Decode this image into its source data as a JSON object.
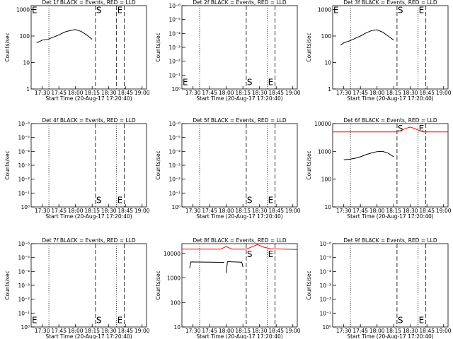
{
  "chart_data": [
    {
      "type": "line",
      "title": "Det 1f BLACK = Events, RED = LLD",
      "x_label": "Start Time (20-Aug-17 17:20:40)",
      "y_label": "Counts/sec",
      "xlim": [
        "17:20",
        "19:04"
      ],
      "xticks": [
        "17:30",
        "17:45",
        "18:00",
        "18:15",
        "18:30",
        "18:45",
        "19:00"
      ],
      "log_y": true,
      "ylim": [
        1,
        1400
      ],
      "yticks": [
        1,
        10,
        100,
        1000
      ],
      "series": [
        {
          "color": "#000000",
          "x": [
            "17:25",
            "17:30",
            "17:35",
            "17:40",
            "17:45",
            "17:50",
            "17:55",
            "18:00",
            "18:05",
            "18:10",
            "18:15"
          ],
          "values": [
            55,
            70,
            75,
            90,
            110,
            140,
            160,
            175,
            150,
            110,
            75
          ]
        }
      ],
      "markers": [
        {
          "x": "17:36",
          "style": "dotted"
        },
        {
          "x": "18:18",
          "style": "dashed"
        },
        {
          "x": "18:37",
          "style": "dashed"
        },
        {
          "x": "18:44",
          "style": "dashed"
        }
      ],
      "annotations": [
        {
          "text": "E",
          "x": "17:20",
          "y": 1000
        },
        {
          "text": "S",
          "x": "18:18",
          "y": 1000
        },
        {
          "text": "E",
          "x": "18:37",
          "y": 1000
        }
      ]
    },
    {
      "type": "line",
      "title": "Det 2f BLACK = Events, RED = LLD",
      "x_label": "Start Time (20-Aug-17 17:20:40)",
      "y_label": "Counts/sec",
      "xlim": [
        "17:20",
        "19:04"
      ],
      "xticks": [
        "17:30",
        "17:45",
        "18:00",
        "18:15",
        "18:30",
        "18:45",
        "19:00"
      ],
      "log_y": true,
      "ylim": [
        1,
        1e-06
      ],
      "yticks": [
        {
          "value": 1,
          "label": "10⁰"
        },
        {
          "value": 0.1,
          "label": "10⁻¹"
        },
        {
          "value": 0.01,
          "label": "10⁻²"
        },
        {
          "value": 0.001,
          "label": "10⁻³"
        },
        {
          "value": 0.0001,
          "label": "10⁻⁴"
        },
        {
          "value": 1e-05,
          "label": "10⁻⁵"
        },
        {
          "value": 1e-06,
          "label": "10⁻⁶"
        }
      ],
      "series": [],
      "markers": [
        {
          "x": "17:36",
          "style": "dotted"
        },
        {
          "x": "18:18",
          "style": "dashed"
        },
        {
          "x": "18:37",
          "style": "dotted"
        },
        {
          "x": "18:44",
          "style": "dashed"
        }
      ],
      "annotations": [
        {
          "text": "E",
          "x": "17:20",
          "y": 0.3
        },
        {
          "text": "S",
          "x": "18:18",
          "y": 0.3
        },
        {
          "text": "E",
          "x": "18:37",
          "y": 0.3
        }
      ]
    },
    {
      "type": "line",
      "title": "Det 3f BLACK = Events, RED = LLD",
      "x_label": "Start Time (20-Aug-17 17:20:40)",
      "y_label": "Counts/sec",
      "xlim": [
        "17:20",
        "19:04"
      ],
      "xticks": [
        "17:30",
        "17:45",
        "18:00",
        "18:15",
        "18:30",
        "18:45",
        "19:00"
      ],
      "log_y": true,
      "ylim": [
        1,
        1400
      ],
      "yticks": [
        1,
        10,
        100,
        1000
      ],
      "series": [
        {
          "color": "#000000",
          "x": [
            "17:27",
            "17:30",
            "17:35",
            "17:40",
            "17:45",
            "17:50",
            "17:55",
            "18:00",
            "18:05",
            "18:10",
            "18:15"
          ],
          "values": [
            45,
            55,
            65,
            80,
            100,
            130,
            160,
            170,
            140,
            100,
            70
          ]
        }
      ],
      "markers": [
        {
          "x": "17:36",
          "style": "dotted"
        },
        {
          "x": "18:18",
          "style": "dashed"
        },
        {
          "x": "18:37",
          "style": "dotted"
        },
        {
          "x": "18:44",
          "style": "dashed"
        }
      ],
      "annotations": [
        {
          "text": "E",
          "x": "17:20",
          "y": 1000
        },
        {
          "text": "S",
          "x": "18:18",
          "y": 1000
        },
        {
          "text": "E",
          "x": "18:37",
          "y": 1000
        }
      ]
    },
    {
      "type": "line",
      "title": "Det 4f BLACK = Events, RED = LLD",
      "x_label": "Start Time (20-Aug-17 17:20:40)",
      "y_label": "Counts/sec",
      "xlim": [
        "17:20",
        "19:04"
      ],
      "xticks": [
        "17:30",
        "17:45",
        "18:00",
        "18:15",
        "18:30",
        "18:45",
        "19:00"
      ],
      "log_y": true,
      "ylim": [
        1,
        1e-06
      ],
      "yticks": [
        {
          "value": 1,
          "label": "10⁰"
        },
        {
          "value": 0.1,
          "label": "10⁻¹"
        },
        {
          "value": 0.01,
          "label": "10⁻²"
        },
        {
          "value": 0.001,
          "label": "10⁻³"
        },
        {
          "value": 0.0001,
          "label": "10⁻⁴"
        },
        {
          "value": 1e-05,
          "label": "10⁻⁵"
        },
        {
          "value": 1e-06,
          "label": "10⁻⁶"
        }
      ],
      "series": [],
      "markers": [
        {
          "x": "17:36",
          "style": "dotted"
        },
        {
          "x": "18:18",
          "style": "dashed"
        },
        {
          "x": "18:37",
          "style": "dotted"
        },
        {
          "x": "18:44",
          "style": "dashed"
        }
      ],
      "annotations": [
        {
          "text": "S",
          "x": "18:18",
          "y": 0.3
        },
        {
          "text": "E",
          "x": "18:37",
          "y": 0.3
        }
      ]
    },
    {
      "type": "line",
      "title": "Det 5f BLACK = Events, RED = LLD",
      "x_label": "Start Time (20-Aug-17 17:20:40)",
      "y_label": "Counts/sec",
      "xlim": [
        "17:20",
        "19:04"
      ],
      "xticks": [
        "17:30",
        "17:45",
        "18:00",
        "18:15",
        "18:30",
        "18:45",
        "19:00"
      ],
      "log_y": true,
      "ylim": [
        1,
        1e-06
      ],
      "yticks": [
        {
          "value": 1,
          "label": "10⁰"
        },
        {
          "value": 0.1,
          "label": "10⁻¹"
        },
        {
          "value": 0.01,
          "label": "10⁻²"
        },
        {
          "value": 0.001,
          "label": "10⁻³"
        },
        {
          "value": 0.0001,
          "label": "10⁻⁴"
        },
        {
          "value": 1e-05,
          "label": "10⁻⁵"
        },
        {
          "value": 1e-06,
          "label": "10⁻⁶"
        }
      ],
      "series": [],
      "markers": [
        {
          "x": "17:36",
          "style": "dotted"
        },
        {
          "x": "18:18",
          "style": "dashed"
        },
        {
          "x": "18:37",
          "style": "dotted"
        },
        {
          "x": "18:44",
          "style": "dashed"
        }
      ],
      "annotations": [
        {
          "text": "S",
          "x": "18:18",
          "y": 0.3
        },
        {
          "text": "E",
          "x": "18:37",
          "y": 0.3
        }
      ]
    },
    {
      "type": "line",
      "title": "Det 6f BLACK = Events, RED = LLD",
      "x_label": "Start Time (20-Aug-17 17:20:40)",
      "y_label": "Counts/sec",
      "xlim": [
        "17:20",
        "19:04"
      ],
      "xticks": [
        "17:30",
        "17:45",
        "18:00",
        "18:15",
        "18:30",
        "18:45",
        "19:00"
      ],
      "log_y": true,
      "ylim": [
        10,
        10000
      ],
      "yticks": [
        10,
        100,
        1000,
        10000
      ],
      "series": [
        {
          "color": "#000000",
          "x": [
            "17:30",
            "17:35",
            "17:40",
            "17:45",
            "17:50",
            "17:55",
            "18:00",
            "18:05",
            "18:10",
            "18:15"
          ],
          "values": [
            500,
            520,
            560,
            640,
            760,
            880,
            980,
            1000,
            860,
            640
          ]
        },
        {
          "color": "#ff0000",
          "x": [
            "17:20",
            "18:18",
            "18:22",
            "18:26",
            "18:30",
            "18:34",
            "18:38",
            "18:42",
            "19:04"
          ],
          "values": [
            5000,
            5000,
            5800,
            6700,
            7500,
            6600,
            5600,
            5000,
            5000
          ]
        }
      ],
      "markers": [
        {
          "x": "17:36",
          "style": "dotted"
        },
        {
          "x": "18:18",
          "style": "dashed"
        },
        {
          "x": "18:37",
          "style": "dotted"
        },
        {
          "x": "18:44",
          "style": "dashed"
        }
      ],
      "annotations": [
        {
          "text": "S",
          "x": "18:18",
          "y": 7000
        },
        {
          "text": "E",
          "x": "18:37",
          "y": 7000
        }
      ]
    },
    {
      "type": "line",
      "title": "Det 7f BLACK = Events, RED = LLD",
      "x_label": "Start Time (20-Aug-17 17:20:40)",
      "y_label": "Counts/sec",
      "xlim": [
        "17:20",
        "19:04"
      ],
      "xticks": [
        "17:30",
        "17:45",
        "18:00",
        "18:15",
        "18:30",
        "18:45",
        "19:00"
      ],
      "log_y": true,
      "ylim": [
        1,
        1e-06
      ],
      "yticks": [
        {
          "value": 1,
          "label": "10⁰"
        },
        {
          "value": 0.1,
          "label": "10⁻¹"
        },
        {
          "value": 0.01,
          "label": "10⁻²"
        },
        {
          "value": 0.001,
          "label": "10⁻³"
        },
        {
          "value": 0.0001,
          "label": "10⁻⁴"
        },
        {
          "value": 1e-05,
          "label": "10⁻⁵"
        },
        {
          "value": 1e-06,
          "label": "10⁻⁶"
        }
      ],
      "series": [],
      "markers": [
        {
          "x": "17:36",
          "style": "dotted"
        },
        {
          "x": "18:18",
          "style": "dashed"
        },
        {
          "x": "18:37",
          "style": "dotted"
        },
        {
          "x": "18:44",
          "style": "dashed"
        }
      ],
      "annotations": [
        {
          "text": "E",
          "x": "17:20",
          "y": 0.3
        },
        {
          "text": "S",
          "x": "18:18",
          "y": 0.3
        },
        {
          "text": "E",
          "x": "18:37",
          "y": 0.3
        }
      ]
    },
    {
      "type": "line",
      "title": "Det 8f BLACK = Events, RED = LLD",
      "x_label": "Start Time (20-Aug-17 17:20:40)",
      "y_label": "Counts/sec",
      "xlim": [
        "17:20",
        "19:04"
      ],
      "xticks": [
        "17:30",
        "17:45",
        "18:00",
        "18:15",
        "18:30",
        "18:45",
        "19:00"
      ],
      "log_y": true,
      "ylim": [
        10,
        25000
      ],
      "yticks": [
        10,
        100,
        1000,
        10000
      ],
      "series": [
        {
          "color": "#000000",
          "x": [
            "17:27",
            "17:28",
            "17:58",
            "17:59",
            "18:00",
            "18:01",
            "18:14",
            "18:15"
          ],
          "values": [
            2500,
            4500,
            4300,
            null,
            1600,
            4600,
            4400,
            2800
          ]
        },
        {
          "color": "#ff0000",
          "x": [
            "17:20",
            "17:55",
            "18:00",
            "18:05",
            "18:18",
            "18:24",
            "18:28",
            "18:34",
            "18:40",
            "19:04"
          ],
          "values": [
            15000,
            15000,
            19000,
            15000,
            15000,
            19000,
            23000,
            18000,
            15500,
            14500
          ]
        }
      ],
      "markers": [
        {
          "x": "17:36",
          "style": "dotted"
        },
        {
          "x": "18:18",
          "style": "dashed"
        },
        {
          "x": "18:37",
          "style": "dotted"
        },
        {
          "x": "18:44",
          "style": "dashed"
        }
      ],
      "annotations": [
        {
          "text": "S",
          "x": "18:18",
          "y": 10000
        },
        {
          "text": "E",
          "x": "18:37",
          "y": 10000
        }
      ]
    },
    {
      "type": "line",
      "title": "Det 9f BLACK = Events, RED = LLD",
      "x_label": "Start Time (20-Aug-17 17:20:40)",
      "y_label": "Counts/sec",
      "xlim": [
        "17:20",
        "19:04"
      ],
      "xticks": [
        "17:30",
        "17:45",
        "18:00",
        "18:15",
        "18:30",
        "18:45",
        "19:00"
      ],
      "log_y": true,
      "ylim": [
        1,
        1e-06
      ],
      "yticks": [
        {
          "value": 1,
          "label": "10⁰"
        },
        {
          "value": 0.1,
          "label": "10⁻¹"
        },
        {
          "value": 0.01,
          "label": "10⁻²"
        },
        {
          "value": 0.001,
          "label": "10⁻³"
        },
        {
          "value": 0.0001,
          "label": "10⁻⁴"
        },
        {
          "value": 1e-05,
          "label": "10⁻⁵"
        },
        {
          "value": 1e-06,
          "label": "10⁻⁶"
        }
      ],
      "series": [],
      "markers": [
        {
          "x": "17:36",
          "style": "dotted"
        },
        {
          "x": "18:18",
          "style": "dashed"
        },
        {
          "x": "18:37",
          "style": "dotted"
        },
        {
          "x": "18:44",
          "style": "dashed"
        }
      ],
      "annotations": [
        {
          "text": "S",
          "x": "18:18",
          "y": 0.3
        },
        {
          "text": "E",
          "x": "18:37",
          "y": 0.3
        }
      ]
    }
  ]
}
